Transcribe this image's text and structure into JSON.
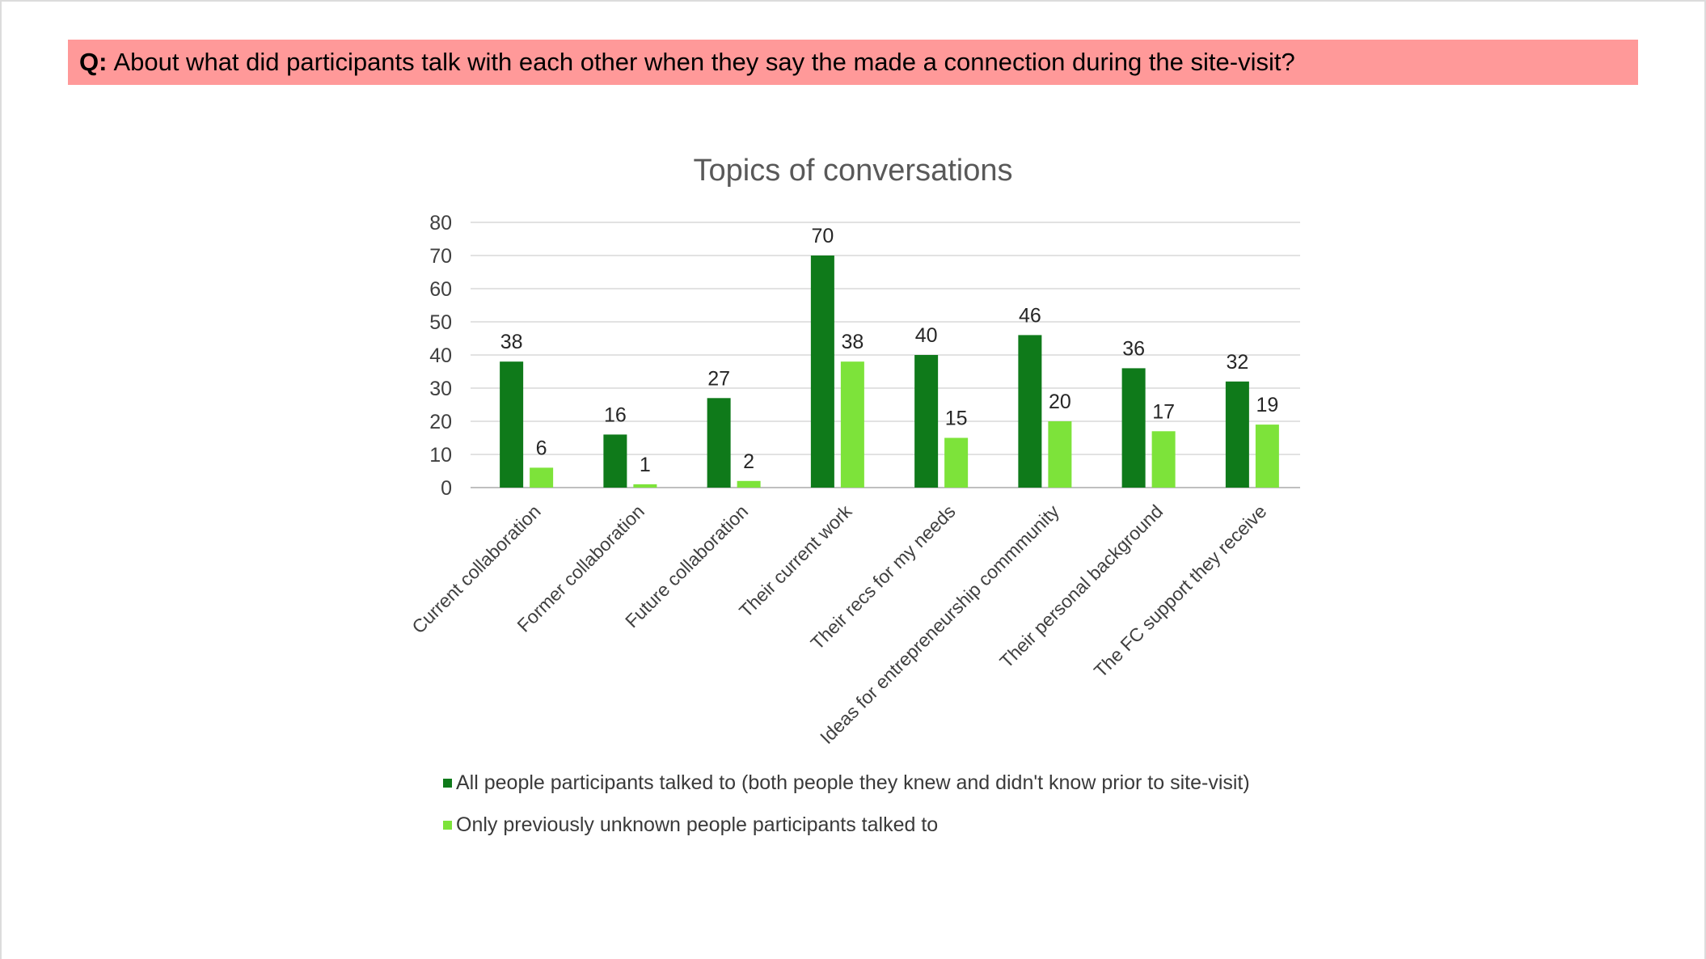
{
  "banner": {
    "prefix": "Q:",
    "question": "About what did participants talk with each other when they say the made a connection during the site-visit?"
  },
  "chart_data": {
    "type": "bar",
    "title": "Topics of conversations",
    "xlabel": "",
    "ylabel": "",
    "ylim": [
      0,
      80
    ],
    "yticks": [
      0,
      10,
      20,
      30,
      40,
      50,
      60,
      70,
      80
    ],
    "grid": true,
    "legend_position": "bottom",
    "categories": [
      "Current collaboration",
      "Former collaboration",
      "Future collaboration",
      "Their current  work",
      "Their recs for my needs",
      "Ideas for entrepreneurship  commmunity",
      "Their personal  background",
      "The FC support  they receive"
    ],
    "series": [
      {
        "name": "All people participants talked to (both people they knew and didn't know prior to site-visit)",
        "color": "#0f7a1a",
        "values": [
          38,
          16,
          27,
          70,
          40,
          46,
          36,
          32
        ]
      },
      {
        "name": "Only previously unknown people participants talked to",
        "color": "#7de33a",
        "values": [
          6,
          1,
          2,
          38,
          15,
          20,
          17,
          19
        ]
      }
    ]
  }
}
